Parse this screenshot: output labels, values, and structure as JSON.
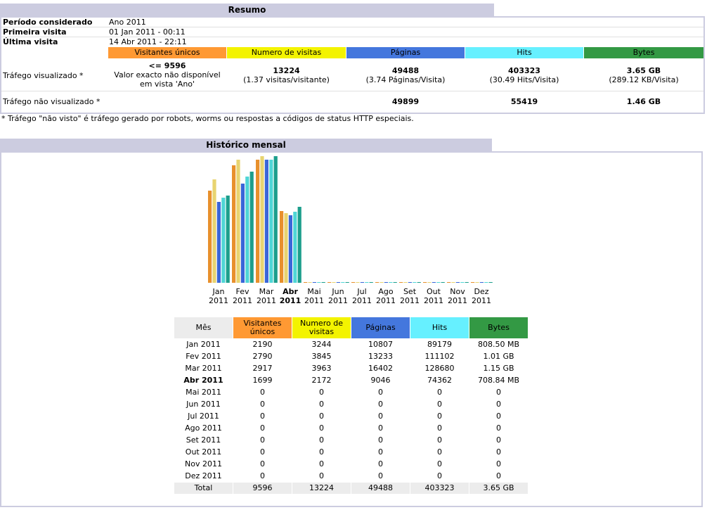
{
  "resumo": {
    "title": "Resumo",
    "periodo_label": "Período considerado",
    "periodo_value": "Ano 2011",
    "primeira_label": "Primeira visita",
    "primeira_value": "01 Jan 2011 - 00:11",
    "ultima_label": "Última visita",
    "ultima_value": "14 Abr 2011 - 22:11",
    "headers": [
      "Visitantes únicos",
      "Numero de visitas",
      "Páginas",
      "Hits",
      "Bytes"
    ],
    "visto": {
      "label": "Tráfego visualizado *",
      "visitantes_main": "<= 9596",
      "visitantes_sub1": "Valor exacto não disponível",
      "visitantes_sub2": "em vista 'Ano'",
      "visitas_main": "13224",
      "visitas_sub": "(1.37 visitas/visitante)",
      "paginas_main": "49488",
      "paginas_sub": "(3.74 Páginas/Visita)",
      "hits_main": "403323",
      "hits_sub": "(30.49 Hits/Visita)",
      "bytes_main": "3.65 GB",
      "bytes_sub": "(289.12 KB/Visita)"
    },
    "nao_visto": {
      "label": "Tráfego não visualizado *",
      "paginas": "49899",
      "hits": "55419",
      "bytes": "1.46 GB"
    },
    "footnote": "* Tráfego \"não visto\" é tráfego gerado por robots, worms ou respostas a códigos de status HTTP especiais."
  },
  "historico": {
    "title": "Histórico mensal",
    "colors": {
      "visitantes": "#e8902c",
      "visitas": "#e8d470",
      "paginas": "#3a66d8",
      "hits": "#4fd6d6",
      "bytes": "#1c9e8c"
    },
    "table_headers": {
      "mes": "Mês",
      "visitantes": "Visitantes únicos",
      "visitas": "Numero de visitas",
      "paginas": "Páginas",
      "hits": "Hits",
      "bytes": "Bytes"
    },
    "chart_data": {
      "type": "bar",
      "categories": [
        "Jan 2011",
        "Fev 2011",
        "Mar 2011",
        "Abr 2011",
        "Mai 2011",
        "Jun 2011",
        "Jul 2011",
        "Ago 2011",
        "Set 2011",
        "Out 2011",
        "Nov 2011",
        "Dez 2011"
      ],
      "month_labels": [
        "Jan",
        "Fev",
        "Mar",
        "Abr",
        "Mai",
        "Jun",
        "Jul",
        "Ago",
        "Set",
        "Out",
        "Nov",
        "Dez"
      ],
      "year_label": "2011",
      "current_month_index": 3,
      "series": [
        {
          "key": "visitantes",
          "values": [
            2190,
            2790,
            2917,
            1699,
            0,
            0,
            0,
            0,
            0,
            0,
            0,
            0
          ]
        },
        {
          "key": "visitas",
          "values": [
            3244,
            3845,
            3963,
            2172,
            0,
            0,
            0,
            0,
            0,
            0,
            0,
            0
          ]
        },
        {
          "key": "paginas",
          "values": [
            10807,
            13233,
            16402,
            9046,
            0,
            0,
            0,
            0,
            0,
            0,
            0,
            0
          ]
        },
        {
          "key": "hits",
          "values": [
            89179,
            111102,
            128680,
            74362,
            0,
            0,
            0,
            0,
            0,
            0,
            0,
            0
          ]
        },
        {
          "key": "bytes",
          "values": [
            808.5,
            1035.0,
            1178.0,
            708.84,
            0,
            0,
            0,
            0,
            0,
            0,
            0,
            0
          ]
        }
      ]
    },
    "rows": [
      {
        "mes": "Jan 2011",
        "visitantes": "2190",
        "visitas": "3244",
        "paginas": "10807",
        "hits": "89179",
        "bytes": "808.50 MB"
      },
      {
        "mes": "Fev 2011",
        "visitantes": "2790",
        "visitas": "3845",
        "paginas": "13233",
        "hits": "111102",
        "bytes": "1.01 GB"
      },
      {
        "mes": "Mar 2011",
        "visitantes": "2917",
        "visitas": "3963",
        "paginas": "16402",
        "hits": "128680",
        "bytes": "1.15 GB"
      },
      {
        "mes": "Abr 2011",
        "visitantes": "1699",
        "visitas": "2172",
        "paginas": "9046",
        "hits": "74362",
        "bytes": "708.84 MB"
      },
      {
        "mes": "Mai 2011",
        "visitantes": "0",
        "visitas": "0",
        "paginas": "0",
        "hits": "0",
        "bytes": "0"
      },
      {
        "mes": "Jun 2011",
        "visitantes": "0",
        "visitas": "0",
        "paginas": "0",
        "hits": "0",
        "bytes": "0"
      },
      {
        "mes": "Jul 2011",
        "visitantes": "0",
        "visitas": "0",
        "paginas": "0",
        "hits": "0",
        "bytes": "0"
      },
      {
        "mes": "Ago 2011",
        "visitantes": "0",
        "visitas": "0",
        "paginas": "0",
        "hits": "0",
        "bytes": "0"
      },
      {
        "mes": "Set 2011",
        "visitantes": "0",
        "visitas": "0",
        "paginas": "0",
        "hits": "0",
        "bytes": "0"
      },
      {
        "mes": "Out 2011",
        "visitantes": "0",
        "visitas": "0",
        "paginas": "0",
        "hits": "0",
        "bytes": "0"
      },
      {
        "mes": "Nov 2011",
        "visitantes": "0",
        "visitas": "0",
        "paginas": "0",
        "hits": "0",
        "bytes": "0"
      },
      {
        "mes": "Dez 2011",
        "visitantes": "0",
        "visitas": "0",
        "paginas": "0",
        "hits": "0",
        "bytes": "0"
      }
    ],
    "total": {
      "mes": "Total",
      "visitantes": "9596",
      "visitas": "13224",
      "paginas": "49488",
      "hits": "403323",
      "bytes": "3.65 GB"
    }
  }
}
